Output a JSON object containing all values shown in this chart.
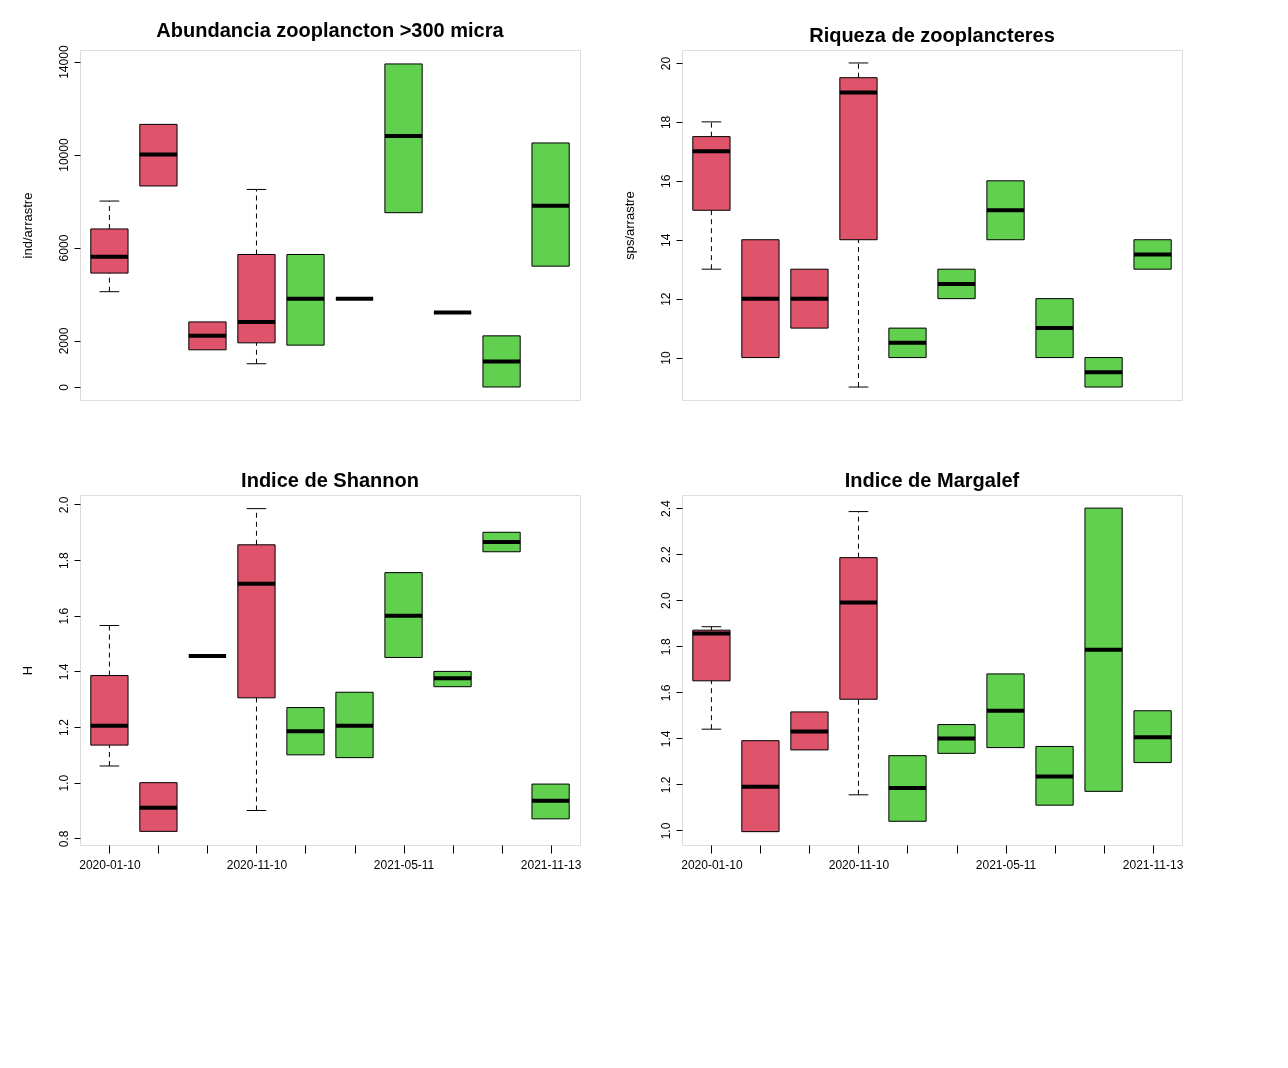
{
  "chart_data": [
    {
      "type": "box",
      "title": "Abundancia zooplancton >300 micra",
      "ylabel": "ind/arrastre",
      "tick_labels": "y",
      "categories": [
        "2020-01-10",
        null,
        null,
        "2020-11-10",
        null,
        null,
        "2021-05-11",
        null,
        null,
        "2021-11-13"
      ],
      "colors": [
        "#df536b",
        "#df536b",
        "#df536b",
        "#df536b",
        "#61d04f",
        "#000000",
        "#61d04f",
        "#000000",
        "#61d04f",
        "#61d04f"
      ],
      "boxes": [
        {
          "low": 4100,
          "q1": 4900,
          "median": 5600,
          "q3": 6800,
          "high": 8000
        },
        {
          "low": 8650,
          "q1": 8650,
          "median": 10000,
          "q3": 11300,
          "high": 11300
        },
        {
          "low": 1600,
          "q1": 1600,
          "median": 2200,
          "q3": 2800,
          "high": 2800
        },
        {
          "low": 1000,
          "q1": 1900,
          "median": 2800,
          "q3": 5700,
          "high": 8500
        },
        {
          "low": 1800,
          "q1": 1800,
          "median": 3800,
          "q3": 5700,
          "high": 5700
        },
        {
          "low": 3800,
          "q1": 3800,
          "median": 3800,
          "q3": 3800,
          "high": 3800
        },
        {
          "low": 7500,
          "q1": 7500,
          "median": 10800,
          "q3": 13900,
          "high": 13900
        },
        {
          "low": 3200,
          "q1": 3200,
          "median": 3200,
          "q3": 3200,
          "high": 3200
        },
        {
          "low": 0,
          "q1": 0,
          "median": 1100,
          "q3": 2200,
          "high": 2200
        },
        {
          "low": 5200,
          "q1": 5200,
          "median": 7800,
          "q3": 10500,
          "high": 10500
        }
      ],
      "ylim": [
        -560,
        14500
      ],
      "yticks": [
        0,
        {
          "value": 2000,
          "label": "2000"
        },
        {
          "value": 6000,
          "label": "6000"
        },
        {
          "value": 10000,
          "label": "10000"
        },
        {
          "value": 14000,
          "label": "14000"
        }
      ]
    },
    {
      "type": "box",
      "title": "Riqueza de zooplancteres",
      "ylabel": "sps/arrastre",
      "tick_labels": "y",
      "categories": [
        "2020-01-10",
        null,
        null,
        "2020-11-10",
        null,
        null,
        "2021-05-11",
        null,
        null,
        "2021-11-13"
      ],
      "colors": [
        "#df536b",
        "#df536b",
        "#df536b",
        "#df536b",
        "#61d04f",
        "#61d04f",
        "#61d04f",
        "#61d04f",
        "#61d04f",
        "#61d04f"
      ],
      "boxes": [
        {
          "low": 13,
          "q1": 15,
          "median": 17,
          "q3": 17.5,
          "high": 18
        },
        {
          "low": 10,
          "q1": 10,
          "median": 12,
          "q3": 14,
          "high": 14
        },
        {
          "low": 11,
          "q1": 11,
          "median": 12,
          "q3": 13,
          "high": 13
        },
        {
          "low": 9,
          "q1": 14,
          "median": 19,
          "q3": 19.5,
          "high": 20
        },
        {
          "low": 10,
          "q1": 10,
          "median": 10.5,
          "q3": 11,
          "high": 11
        },
        {
          "low": 12,
          "q1": 12,
          "median": 12.5,
          "q3": 13,
          "high": 13
        },
        {
          "low": 14,
          "q1": 14,
          "median": 15,
          "q3": 16,
          "high": 16
        },
        {
          "low": 10,
          "q1": 10,
          "median": 11,
          "q3": 12,
          "high": 12
        },
        {
          "low": 9,
          "q1": 9,
          "median": 9.5,
          "q3": 10,
          "high": 10
        },
        {
          "low": 13,
          "q1": 13,
          "median": 13.5,
          "q3": 14,
          "high": 14
        }
      ],
      "ylim": [
        8.56,
        20.44
      ],
      "yticks": [
        10,
        12,
        14,
        16,
        18,
        20
      ]
    },
    {
      "type": "box",
      "title": "Indice de Shannon",
      "ylabel": "H",
      "categories": [
        "2020-01-10",
        null,
        null,
        "2020-11-10",
        null,
        null,
        "2021-05-11",
        null,
        null,
        "2021-11-13"
      ],
      "colors": [
        "#df536b",
        "#df536b",
        "#000000",
        "#df536b",
        "#61d04f",
        "#61d04f",
        "#61d04f",
        "#61d04f",
        "#61d04f",
        "#61d04f"
      ],
      "boxes": [
        {
          "low": 1.06,
          "q1": 1.135,
          "median": 1.205,
          "q3": 1.385,
          "high": 1.565
        },
        {
          "low": 0.825,
          "q1": 0.825,
          "median": 0.91,
          "q3": 1.0,
          "high": 1.0
        },
        {
          "low": 1.455,
          "q1": 1.455,
          "median": 1.455,
          "q3": 1.455,
          "high": 1.455
        },
        {
          "low": 0.9,
          "q1": 1.305,
          "median": 1.715,
          "q3": 1.855,
          "high": 1.985
        },
        {
          "low": 1.1,
          "q1": 1.1,
          "median": 1.185,
          "q3": 1.27,
          "high": 1.27
        },
        {
          "low": 1.09,
          "q1": 1.09,
          "median": 1.205,
          "q3": 1.325,
          "high": 1.325
        },
        {
          "low": 1.45,
          "q1": 1.45,
          "median": 1.6,
          "q3": 1.755,
          "high": 1.755
        },
        {
          "low": 1.345,
          "q1": 1.345,
          "median": 1.375,
          "q3": 1.4,
          "high": 1.4
        },
        {
          "low": 1.83,
          "q1": 1.83,
          "median": 1.865,
          "q3": 1.9,
          "high": 1.9
        },
        {
          "low": 0.87,
          "q1": 0.87,
          "median": 0.935,
          "q3": 0.995,
          "high": 0.995
        }
      ],
      "ylim": [
        0.776,
        2.034
      ],
      "yticks": [
        0.8,
        {
          "value": 1,
          "label": "1.0"
        },
        1.2,
        1.4,
        1.6,
        1.8,
        {
          "value": 2,
          "label": "2.0"
        }
      ]
    },
    {
      "type": "box",
      "title": "Indice de Margalef",
      "categories": [
        "2020-01-10",
        null,
        null,
        "2020-11-10",
        null,
        null,
        "2021-05-11",
        null,
        null,
        "2021-11-13"
      ],
      "colors": [
        "#df536b",
        "#df536b",
        "#df536b",
        "#df536b",
        "#61d04f",
        "#61d04f",
        "#61d04f",
        "#61d04f",
        "#61d04f",
        "#61d04f"
      ],
      "boxes": [
        {
          "low": 1.44,
          "q1": 1.65,
          "median": 1.855,
          "q3": 1.87,
          "high": 1.885
        },
        {
          "low": 0.995,
          "q1": 0.995,
          "median": 1.19,
          "q3": 1.39,
          "high": 1.39
        },
        {
          "low": 1.35,
          "q1": 1.35,
          "median": 1.43,
          "q3": 1.515,
          "high": 1.515
        },
        {
          "low": 1.155,
          "q1": 1.57,
          "median": 1.99,
          "q3": 2.185,
          "high": 2.385
        },
        {
          "low": 1.04,
          "q1": 1.04,
          "median": 1.185,
          "q3": 1.325,
          "high": 1.325
        },
        {
          "low": 1.335,
          "q1": 1.335,
          "median": 1.4,
          "q3": 1.46,
          "high": 1.46
        },
        {
          "low": 1.36,
          "q1": 1.36,
          "median": 1.52,
          "q3": 1.68,
          "high": 1.68
        },
        {
          "low": 1.11,
          "q1": 1.11,
          "median": 1.235,
          "q3": 1.365,
          "high": 1.365
        },
        {
          "low": 1.17,
          "q1": 1.17,
          "median": 1.785,
          "q3": 2.4,
          "high": 2.4
        },
        {
          "low": 1.295,
          "q1": 1.295,
          "median": 1.405,
          "q3": 1.52,
          "high": 1.52
        }
      ],
      "ylim": [
        0.937,
        2.457
      ],
      "yticks": [
        {
          "value": 1,
          "label": "1.0"
        },
        1.2,
        1.4,
        1.6,
        1.8,
        {
          "value": 2,
          "label": "2.0"
        },
        2.2,
        2.4
      ]
    }
  ]
}
